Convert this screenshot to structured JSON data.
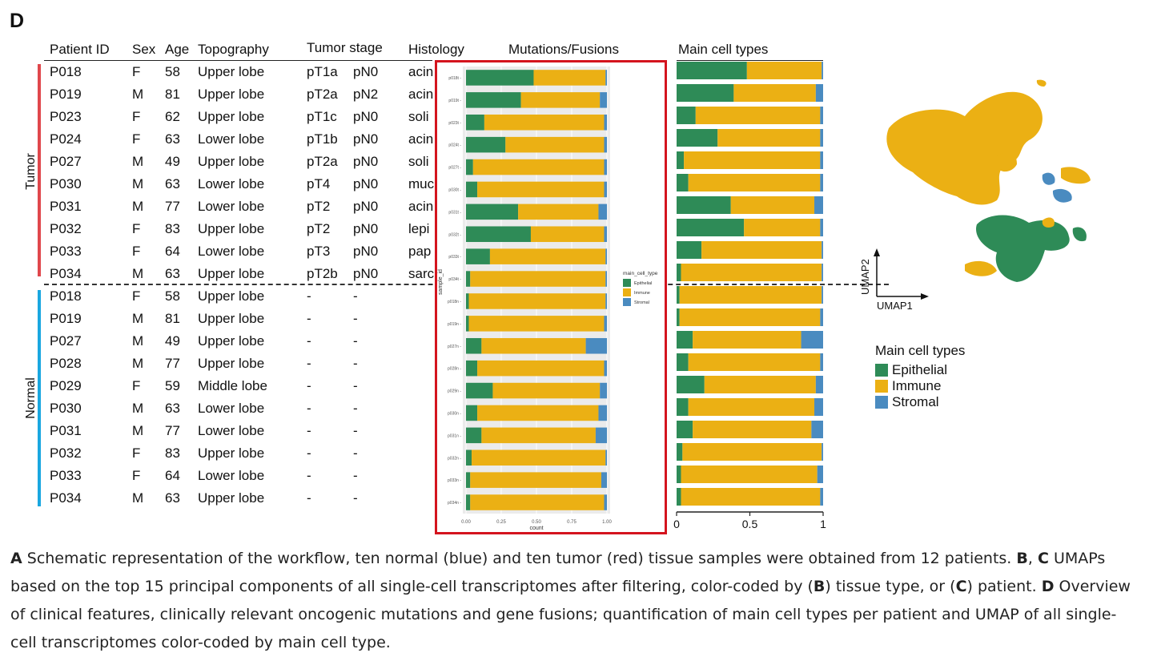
{
  "panel_letter": "D",
  "headers": {
    "patient_id": "Patient ID",
    "sex": "Sex",
    "age": "Age",
    "topography": "Topography",
    "tumor_stage": "Tumor stage",
    "histology": "Histology",
    "mutations": "Mutations/Fusions",
    "main_cell_types": "Main cell types"
  },
  "groups": {
    "tumor_label": "Tumor",
    "normal_label": "Normal",
    "tumor_color": "#e0474c",
    "normal_color": "#1aa7e0"
  },
  "tumor_rows": [
    {
      "id": "P018",
      "sex": "F",
      "age": "58",
      "topo": "Upper lobe",
      "t": "pT1a",
      "n": "pN0",
      "hist": "acin"
    },
    {
      "id": "P019",
      "sex": "M",
      "age": "81",
      "topo": "Upper lobe",
      "t": "pT2a",
      "n": "pN2",
      "hist": "acin"
    },
    {
      "id": "P023",
      "sex": "F",
      "age": "62",
      "topo": "Upper lobe",
      "t": "pT1c",
      "n": "pN0",
      "hist": "soli"
    },
    {
      "id": "P024",
      "sex": "F",
      "age": "63",
      "topo": "Lower lobe",
      "t": "pT1b",
      "n": "pN0",
      "hist": "acin"
    },
    {
      "id": "P027",
      "sex": "M",
      "age": "49",
      "topo": "Upper lobe",
      "t": "pT2a",
      "n": "pN0",
      "hist": "soli"
    },
    {
      "id": "P030",
      "sex": "M",
      "age": "63",
      "topo": "Lower lobe",
      "t": "pT4",
      "n": "pN0",
      "hist": "muc"
    },
    {
      "id": "P031",
      "sex": "M",
      "age": "77",
      "topo": "Lower lobe",
      "t": "pT2",
      "n": "pN0",
      "hist": "acin"
    },
    {
      "id": "P032",
      "sex": "F",
      "age": "83",
      "topo": "Upper lobe",
      "t": "pT2",
      "n": "pN0",
      "hist": "lepi"
    },
    {
      "id": "P033",
      "sex": "F",
      "age": "64",
      "topo": "Lower lobe",
      "t": "pT3",
      "n": "pN0",
      "hist": "pap"
    },
    {
      "id": "P034",
      "sex": "M",
      "age": "63",
      "topo": "Upper lobe",
      "t": "pT2b",
      "n": "pN0",
      "hist": "sarc"
    }
  ],
  "normal_rows": [
    {
      "id": "P018",
      "sex": "F",
      "age": "58",
      "topo": "Upper lobe",
      "t": "-",
      "n": "-"
    },
    {
      "id": "P019",
      "sex": "M",
      "age": "81",
      "topo": "Upper lobe",
      "t": "-",
      "n": "-"
    },
    {
      "id": "P027",
      "sex": "M",
      "age": "49",
      "topo": "Upper lobe",
      "t": "-",
      "n": "-"
    },
    {
      "id": "P028",
      "sex": "M",
      "age": "77",
      "topo": "Upper lobe",
      "t": "-",
      "n": "-"
    },
    {
      "id": "P029",
      "sex": "F",
      "age": "59",
      "topo": "Middle lobe",
      "t": "-",
      "n": "-"
    },
    {
      "id": "P030",
      "sex": "M",
      "age": "63",
      "topo": "Lower lobe",
      "t": "-",
      "n": "-"
    },
    {
      "id": "P031",
      "sex": "M",
      "age": "77",
      "topo": "Lower lobe",
      "t": "-",
      "n": "-"
    },
    {
      "id": "P032",
      "sex": "F",
      "age": "83",
      "topo": "Upper lobe",
      "t": "-",
      "n": "-"
    },
    {
      "id": "P033",
      "sex": "F",
      "age": "64",
      "topo": "Lower lobe",
      "t": "-",
      "n": "-"
    },
    {
      "id": "P034",
      "sex": "M",
      "age": "63",
      "topo": "Upper lobe",
      "t": "-",
      "n": "-"
    }
  ],
  "colors": {
    "epithelial": "#2e8b57",
    "immune": "#ebb014",
    "stromal": "#4a8bc0",
    "highlight_box": "#d4141e"
  },
  "chart_data": [
    {
      "type": "bar",
      "orientation": "horizontal",
      "stacked": true,
      "ylabel": "sample_id",
      "xlabel": "count",
      "xlim": [
        0,
        1
      ],
      "xticks": [
        "0.00",
        "0.25",
        "0.50",
        "0.75",
        "1.00"
      ],
      "legend_title": "main_cell_type",
      "legend_position": "right",
      "categories": [
        "p018t",
        "p019t",
        "p023t",
        "p024t",
        "p027t",
        "p030t",
        "p031t",
        "p032t",
        "p033t",
        "p034t",
        "p018n",
        "p019n",
        "p027n",
        "p028n",
        "p029n",
        "p030n",
        "p031n",
        "p032n",
        "p033n",
        "p034n"
      ],
      "series": [
        {
          "name": "Epithelial",
          "values": [
            0.48,
            0.39,
            0.13,
            0.28,
            0.05,
            0.08,
            0.37,
            0.46,
            0.17,
            0.03,
            0.02,
            0.02,
            0.11,
            0.08,
            0.19,
            0.08,
            0.11,
            0.04,
            0.03,
            0.03
          ]
        },
        {
          "name": "Immune",
          "values": [
            0.51,
            0.56,
            0.85,
            0.7,
            0.93,
            0.9,
            0.57,
            0.52,
            0.82,
            0.96,
            0.97,
            0.96,
            0.74,
            0.9,
            0.76,
            0.86,
            0.81,
            0.95,
            0.93,
            0.95
          ]
        },
        {
          "name": "Stromal",
          "values": [
            0.01,
            0.05,
            0.02,
            0.02,
            0.02,
            0.02,
            0.06,
            0.02,
            0.01,
            0.01,
            0.01,
            0.02,
            0.15,
            0.02,
            0.05,
            0.06,
            0.08,
            0.01,
            0.04,
            0.02
          ]
        }
      ]
    },
    {
      "type": "bar",
      "orientation": "horizontal",
      "stacked": true,
      "title": "Main cell types",
      "xlim": [
        0,
        1
      ],
      "xticks": [
        "0",
        "0.5",
        "1"
      ],
      "categories": [
        "P018 T",
        "P019 T",
        "P023 T",
        "P024 T",
        "P027 T",
        "P030 T",
        "P031 T",
        "P032 T",
        "P033 T",
        "P034 T",
        "P018 N",
        "P019 N",
        "P027 N",
        "P028 N",
        "P029 N",
        "P030 N",
        "P031 N",
        "P032 N",
        "P033 N",
        "P034 N"
      ],
      "series": [
        {
          "name": "Epithelial",
          "values": [
            0.48,
            0.39,
            0.13,
            0.28,
            0.05,
            0.08,
            0.37,
            0.46,
            0.17,
            0.03,
            0.02,
            0.02,
            0.11,
            0.08,
            0.19,
            0.08,
            0.11,
            0.04,
            0.03,
            0.03
          ]
        },
        {
          "name": "Immune",
          "values": [
            0.51,
            0.56,
            0.85,
            0.7,
            0.93,
            0.9,
            0.57,
            0.52,
            0.82,
            0.96,
            0.97,
            0.96,
            0.74,
            0.9,
            0.76,
            0.86,
            0.81,
            0.95,
            0.93,
            0.95
          ]
        },
        {
          "name": "Stromal",
          "values": [
            0.01,
            0.05,
            0.02,
            0.02,
            0.02,
            0.02,
            0.06,
            0.02,
            0.01,
            0.01,
            0.01,
            0.02,
            0.15,
            0.02,
            0.05,
            0.06,
            0.08,
            0.01,
            0.04,
            0.02
          ]
        }
      ]
    },
    {
      "type": "scatter",
      "xlabel": "UMAP1",
      "ylabel": "UMAP2",
      "legend_title": "Main cell types",
      "legend": [
        "Epithelial",
        "Immune",
        "Stromal"
      ]
    }
  ],
  "caption": {
    "a_letter": "A",
    "a_text": " Schematic representation of the workflow, ten normal (blue) and ten tumor (red) tissue samples were obtained from 12 patients. ",
    "b_letter": "B",
    "bc_sep": ", ",
    "c_letter": "C",
    "bc_text": " UMAPs based on the top 15 principal components of all single-cell transcriptomes after filtering, color-coded by (",
    "b_letter2": "B",
    "b_mid": ") tissue type, or (",
    "c_letter2": "C",
    "c_end": ") patient. ",
    "d_letter": "D",
    "d_text": " Overview of clinical features, clinically relevant oncogenic mutations and gene fusions; quantification of main cell types per patient and UMAP of all single-cell transcriptomes color-coded by main cell type."
  }
}
